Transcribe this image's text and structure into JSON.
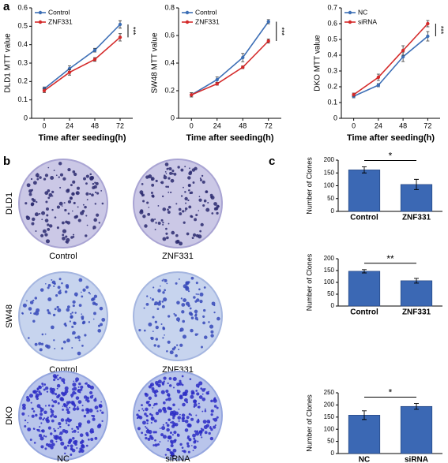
{
  "panel_labels": [
    "a",
    "b",
    "c"
  ],
  "colony_images": [
    {
      "cell_line": "DLD1",
      "conditions": [
        "Control",
        "ZNF331"
      ]
    },
    {
      "cell_line": "SW48",
      "conditions": [
        "Control",
        "ZNF331"
      ]
    },
    {
      "cell_line": "DKO",
      "conditions": [
        "NC",
        "siRNA"
      ]
    }
  ],
  "chart_data": [
    {
      "type": "line",
      "ylabel": "DLD1 MTT value",
      "xlabel": "Time after seeding(h)",
      "x": [
        0,
        24,
        48,
        72
      ],
      "xlim": [
        -12,
        84
      ],
      "xticks": [
        0,
        24,
        48,
        72
      ],
      "ylim": [
        0,
        0.6
      ],
      "yticks": [
        0,
        0.1,
        0.2,
        0.3,
        0.4,
        0.5,
        0.6
      ],
      "legend": "upper left",
      "significance": "***",
      "series": [
        {
          "name": "Control",
          "color": "#3d6fb6",
          "values": [
            0.16,
            0.27,
            0.37,
            0.51
          ],
          "errors": [
            0.01,
            0.015,
            0.01,
            0.02
          ]
        },
        {
          "name": "ZNF331",
          "color": "#d42a2a",
          "values": [
            0.15,
            0.25,
            0.32,
            0.44
          ],
          "errors": [
            0.01,
            0.015,
            0.01,
            0.02
          ]
        }
      ]
    },
    {
      "type": "line",
      "ylabel": "SW48 MTT value",
      "xlabel": "Time after seeding(h)",
      "x": [
        0,
        24,
        48,
        72
      ],
      "xlim": [
        -12,
        84
      ],
      "xticks": [
        0,
        24,
        48,
        72
      ],
      "ylim": [
        0,
        0.8
      ],
      "yticks": [
        0,
        0.2,
        0.4,
        0.6,
        0.8
      ],
      "legend": "upper left",
      "significance": "***",
      "series": [
        {
          "name": "Control",
          "color": "#3d6fb6",
          "values": [
            0.17,
            0.28,
            0.44,
            0.7
          ],
          "errors": [
            0.015,
            0.02,
            0.03,
            0.015
          ]
        },
        {
          "name": "ZNF331",
          "color": "#d42a2a",
          "values": [
            0.17,
            0.25,
            0.37,
            0.56
          ],
          "errors": [
            0.015,
            0.01,
            0.01,
            0.015
          ]
        }
      ]
    },
    {
      "type": "line",
      "ylabel": "DKO MTT value",
      "xlabel": "Time after seeding(h)",
      "x": [
        0,
        24,
        48,
        72
      ],
      "xlim": [
        -12,
        84
      ],
      "xticks": [
        0,
        24,
        48,
        72
      ],
      "ylim": [
        0,
        0.7
      ],
      "yticks": [
        0,
        0.1,
        0.2,
        0.3,
        0.4,
        0.5,
        0.6,
        0.7
      ],
      "legend": "upper left",
      "significance": "***",
      "series": [
        {
          "name": "NC",
          "color": "#3d6fb6",
          "values": [
            0.14,
            0.21,
            0.39,
            0.52
          ],
          "errors": [
            0.01,
            0.01,
            0.03,
            0.03
          ]
        },
        {
          "name": "siRNA",
          "color": "#d42a2a",
          "values": [
            0.15,
            0.26,
            0.43,
            0.6
          ],
          "errors": [
            0.01,
            0.02,
            0.03,
            0.02
          ]
        }
      ]
    },
    {
      "type": "bar",
      "ylabel": "Number of Clones",
      "categories": [
        "Control",
        "ZNF331"
      ],
      "values": [
        162,
        105
      ],
      "errors": [
        12,
        20
      ],
      "color": "#3b68b4",
      "ylim": [
        0,
        200
      ],
      "yticks": [
        0,
        50,
        100,
        150,
        200
      ],
      "significance": "*"
    },
    {
      "type": "bar",
      "ylabel": "Number of Clones",
      "categories": [
        "Control",
        "ZNF331"
      ],
      "values": [
        147,
        107
      ],
      "errors": [
        7,
        10
      ],
      "color": "#3b68b4",
      "ylim": [
        0,
        200
      ],
      "yticks": [
        0,
        50,
        100,
        150,
        200
      ],
      "significance": "**"
    },
    {
      "type": "bar",
      "ylabel": "Number of Clones",
      "categories": [
        "NC",
        "siRNA"
      ],
      "values": [
        158,
        194
      ],
      "errors": [
        18,
        12
      ],
      "color": "#3b68b4",
      "ylim": [
        0,
        250
      ],
      "yticks": [
        0,
        50,
        100,
        150,
        200,
        250
      ],
      "significance": "*"
    }
  ]
}
